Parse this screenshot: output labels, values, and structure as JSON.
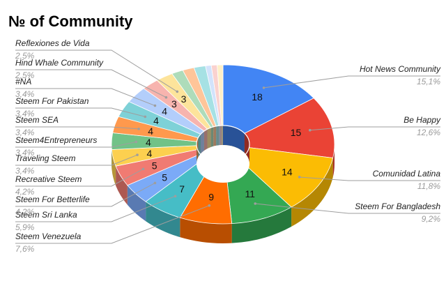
{
  "chart_data": {
    "type": "pie",
    "variant": "3d-donut",
    "title": "№ of Community",
    "legend": "leader-line labels (left and right)",
    "slices": [
      {
        "label": "Hot News Community",
        "value": 18,
        "percent": "15,1%",
        "color": "#4285f4"
      },
      {
        "label": "Be Happy",
        "value": 15,
        "percent": "12,6%",
        "color": "#ea4335"
      },
      {
        "label": "Comunidad Latina",
        "value": 14,
        "percent": "11,8%",
        "color": "#fbbc04"
      },
      {
        "label": "Steem For Bangladesh",
        "value": 11,
        "percent": "9,2%",
        "color": "#34a853"
      },
      {
        "label": "Steem Venezuela",
        "value": 9,
        "percent": "7,6%",
        "color": "#ff6d01"
      },
      {
        "label": "Steem Sri Lanka",
        "value": 7,
        "percent": "5,9%",
        "color": "#46bdc6"
      },
      {
        "label": "Steem For Betterlife",
        "value": 5,
        "percent": "4,2%",
        "color": "#7baaf7"
      },
      {
        "label": "Recreative Steem",
        "value": 5,
        "percent": "4,2%",
        "color": "#f07b72"
      },
      {
        "label": "Traveling Steem",
        "value": 4,
        "percent": "3,4%",
        "color": "#fcd04f"
      },
      {
        "label": "Steem4Entrepreneurs",
        "value": 4,
        "percent": "3,4%",
        "color": "#71c287"
      },
      {
        "label": "Steem SEA",
        "value": 4,
        "percent": "3,4%",
        "color": "#ff994d"
      },
      {
        "label": "Steem For Pakistan",
        "value": 4,
        "percent": "3,4%",
        "color": "#7ed1d7"
      },
      {
        "label": "#NA",
        "value": 4,
        "percent": "3,4%",
        "color": "#b3cefb"
      },
      {
        "label": "Hind Whale Community",
        "value": 3,
        "percent": "2,5%",
        "color": "#f7b4ae"
      },
      {
        "label": "Reflexiones de Vida",
        "value": 3,
        "percent": "2,5%",
        "color": "#fde49b"
      },
      {
        "label": "",
        "value": 2,
        "percent": "",
        "color": "#aedcba"
      },
      {
        "label": "",
        "value": 2,
        "percent": "",
        "color": "#ffc599"
      },
      {
        "label": "",
        "value": 2,
        "percent": "",
        "color": "#a6e1e4"
      },
      {
        "label": "",
        "value": 1,
        "percent": "",
        "color": "#d2e3fc"
      },
      {
        "label": "",
        "value": 1,
        "percent": "",
        "color": "#fad2cf"
      },
      {
        "label": "",
        "value": 1,
        "percent": "",
        "color": "#fef0c7"
      }
    ]
  }
}
